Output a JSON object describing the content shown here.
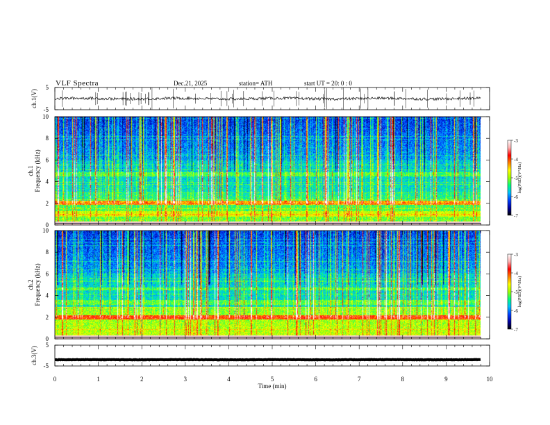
{
  "header": {
    "title": "VLF  Spectra",
    "date": "Dec.21, 2025",
    "station": "station= ATH",
    "start": "start  UT  =   20: 0  : 0"
  },
  "colors": {
    "cmap": [
      "#000000",
      "#0000a0",
      "#0040ff",
      "#00c0ff",
      "#00ff80",
      "#a0ff00",
      "#ffff00",
      "#ff8000",
      "#ff0000",
      "#ffb0b0",
      "#ffffff"
    ]
  },
  "chart_data": [
    {
      "type": "line",
      "id": "ch1-waveform",
      "ylabel": "ch.1(V)",
      "ylim": [
        -5,
        5
      ],
      "yticks": [
        "5",
        "-5"
      ],
      "baseline": 0,
      "amplitude": 0.6
    },
    {
      "type": "heatmap",
      "id": "ch1-spectrogram",
      "ylabel": "ch.1\nFrequency  (kHz)",
      "ylim": [
        0,
        10
      ],
      "yticks": [
        "0",
        "2",
        "4",
        "6",
        "8",
        "10"
      ],
      "xlim": [
        0,
        10
      ],
      "data_end_min": 9.8,
      "colorbar": {
        "label": "log(PSD)(V²/Hz)",
        "range": [
          -7,
          -3
        ],
        "ticks": [
          "-3",
          "-4",
          "-5",
          "-6",
          "-7"
        ]
      },
      "bands_khz": [
        [
          1.9,
          2.3,
          "high"
        ],
        [
          4.5,
          4.9,
          "mid"
        ],
        [
          0.8,
          1.3,
          "mid"
        ]
      ]
    },
    {
      "type": "heatmap",
      "id": "ch2-spectrogram",
      "ylabel": "ch.2\nFrequency  (kHz)",
      "ylim": [
        0,
        10
      ],
      "yticks": [
        "0",
        "2",
        "4",
        "6",
        "8",
        "10"
      ],
      "xlim": [
        0,
        10
      ],
      "data_end_min": 9.8,
      "colorbar": {
        "label": "log(PSD)(V²/Hz)",
        "range": [
          -7,
          -3
        ],
        "ticks": [
          "-3",
          "-4",
          "-5",
          "-6",
          "-7"
        ]
      },
      "bands_khz": [
        [
          1.8,
          2.2,
          "high"
        ],
        [
          4.5,
          4.8,
          "mid"
        ],
        [
          3.2,
          3.6,
          "mid"
        ]
      ]
    },
    {
      "type": "line",
      "id": "ch3-waveform",
      "ylabel": "ch.3(V)",
      "ylim": [
        -5,
        5
      ],
      "yticks": [
        "5",
        "-5"
      ],
      "baseline": -2,
      "amplitude": 0.1
    }
  ],
  "xaxis": {
    "label": "Time  (min)",
    "ticks": [
      "0",
      "1",
      "2",
      "3",
      "4",
      "5",
      "6",
      "7",
      "8",
      "9",
      "10"
    ]
  }
}
